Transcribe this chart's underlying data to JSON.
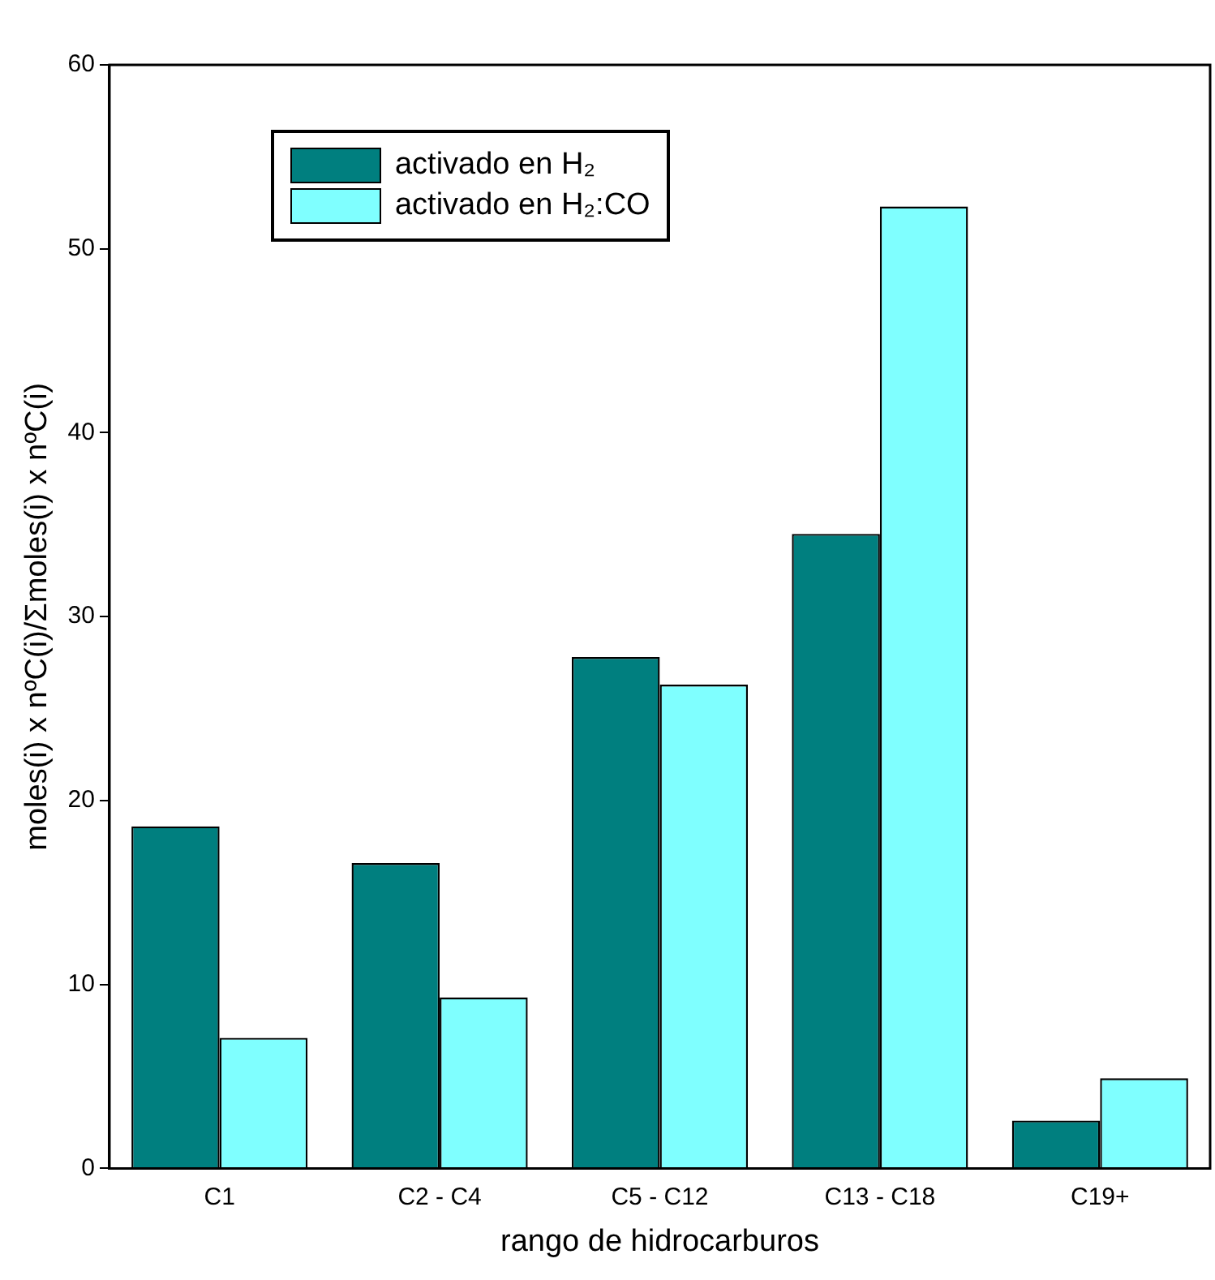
{
  "chart_data": {
    "type": "bar",
    "xlabel": "rango de hidrocarburos",
    "ylabel": "moles(i) x nºC(i)/Σmoles(i) x nºC(i)",
    "categories": [
      "C1",
      "C2 - C4",
      "C5 - C12",
      "C13 - C18",
      "C19+"
    ],
    "series": [
      {
        "name": "activado en H₂",
        "color": "#007f7f",
        "values": [
          18.6,
          16.6,
          27.8,
          34.5,
          2.6
        ]
      },
      {
        "name": "activado en H₂:CO",
        "color": "#7fffff",
        "values": [
          7.1,
          9.3,
          26.3,
          52.3,
          4.9
        ]
      }
    ],
    "ylim": [
      0,
      60
    ],
    "yticks": [
      0,
      10,
      20,
      30,
      40,
      50,
      60
    ],
    "grid": false,
    "legend": "top left"
  }
}
